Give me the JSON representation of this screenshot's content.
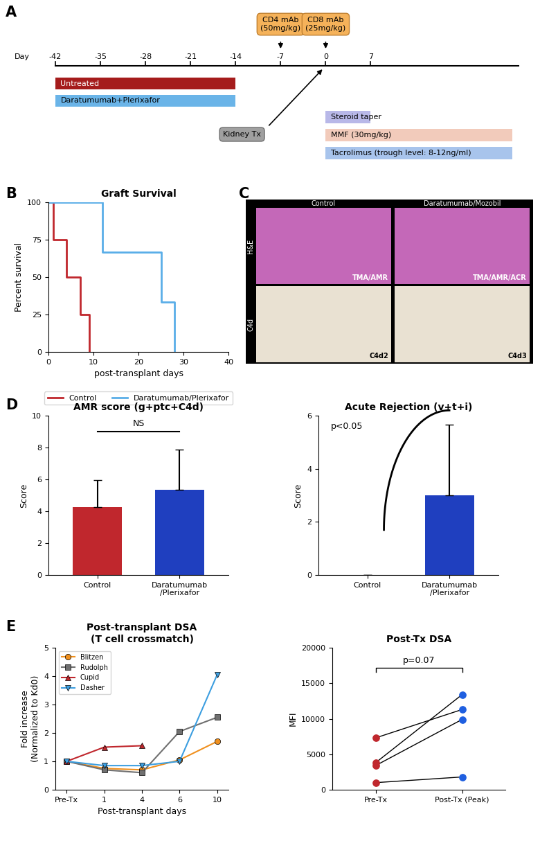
{
  "panel_labels": [
    "A",
    "B",
    "C",
    "D",
    "E"
  ],
  "timeline": {
    "axis_label": "Day",
    "ticks": [
      -42,
      -35,
      -28,
      -21,
      -14,
      -7,
      0,
      7
    ],
    "injections": [
      {
        "label": "CD4 mAb\n(50mg/kg)",
        "day": -7,
        "color": "#f5b25a"
      },
      {
        "label": "CD8 mAb\n(25mg/kg)",
        "day": 0,
        "color": "#f5b25a"
      }
    ],
    "pre_treatments": [
      {
        "label": "Untreated",
        "start": -42,
        "end": -14,
        "color": "#a51c1c"
      },
      {
        "label": "Daratumumab+Plerixafor",
        "start": -42,
        "end": -14,
        "color": "#6ab4e8"
      }
    ],
    "event": {
      "label": "Kidney Tx",
      "day": 0,
      "color": "#a0a0a0"
    },
    "post_treatments": [
      {
        "label": "Steroid taper",
        "start": 0,
        "end": 7,
        "color": "#b8b8e8"
      },
      {
        "label": "MMF (30mg/kg)",
        "start": 0,
        "end": 29,
        "color": "#f2cbbb"
      },
      {
        "label": "Tacrolimus (trough level: 8-12ng/ml)",
        "start": 0,
        "end": 29,
        "color": "#a8c4ec"
      }
    ]
  },
  "histology": {
    "columns": [
      "Control",
      "Daratumumab/Mozobil"
    ],
    "rows": [
      "H&E",
      "C4d"
    ],
    "cell_labels": [
      [
        "TMA/AMR",
        "TMA/AMR/ACR"
      ],
      [
        "C4d2",
        "C4d3"
      ]
    ]
  },
  "chart_data": [
    {
      "type": "line",
      "title": "Graft Survival",
      "x_label": "post-transplant days",
      "y_label": "Percent survival",
      "xlim": [
        0,
        40
      ],
      "xticks": [
        0,
        10,
        20,
        30,
        40
      ],
      "ylim": [
        0,
        100
      ],
      "yticks": [
        0,
        25,
        50,
        75,
        100
      ],
      "legend": "upper center",
      "series": [
        {
          "name": "Control",
          "color": "#c0272d",
          "line_style": "steps",
          "x": [
            0,
            1,
            4,
            7,
            9
          ],
          "values": [
            100,
            75,
            50,
            25,
            0
          ]
        },
        {
          "name": "Daratumumab/Plerixafor",
          "color": "#5aaee8",
          "line_style": "steps",
          "x": [
            0,
            12,
            25,
            28
          ],
          "values": [
            100,
            66.7,
            33.3,
            0
          ]
        }
      ]
    },
    {
      "type": "bar",
      "title": "AMR score (g+ptc+C4d)",
      "y_label": "Score",
      "categories": [
        "Control",
        "Daratumumab\n/Plerixafor"
      ],
      "values": [
        4.25,
        5.35
      ],
      "errors": [
        1.7,
        2.5
      ],
      "colors": [
        "#c0272d",
        "#1f3fbf"
      ],
      "ylim": [
        0,
        10
      ],
      "yticks": [
        0,
        2,
        4,
        6,
        8,
        10
      ],
      "annotation": "NS"
    },
    {
      "type": "bar",
      "title": "Acute Rejection (v+t+i)",
      "y_label": "Score",
      "categories": [
        "Control",
        "Daratumumab\n/Plerixafor"
      ],
      "values": [
        0,
        3.0
      ],
      "errors": [
        0,
        2.65
      ],
      "colors": [
        "#c0272d",
        "#1f3fbf"
      ],
      "ylim": [
        0,
        6
      ],
      "yticks": [
        0,
        2,
        4,
        6
      ],
      "annotation": "p<0.05"
    },
    {
      "type": "line",
      "title": "Post-transplant DSA\n(T cell crossmatch)",
      "x_label": "Post-transplant days",
      "y_label": "Fold increase\n(Normalized to Kd0)",
      "categories": [
        "Pre-Tx",
        "1",
        "4",
        "6",
        "10"
      ],
      "ylim": [
        0,
        5
      ],
      "yticks": [
        0,
        1,
        2,
        3,
        4,
        5
      ],
      "legend": "upper left",
      "series": [
        {
          "name": "Blitzen",
          "color": "#f0901e",
          "marker": "circle",
          "values": [
            1,
            0.75,
            0.7,
            1.05,
            1.7
          ]
        },
        {
          "name": "Rudolph",
          "color": "#707070",
          "marker": "square",
          "values": [
            1,
            0.7,
            0.6,
            2.05,
            2.55
          ]
        },
        {
          "name": "Cupid",
          "color": "#c0272d",
          "marker": "triangle_up",
          "values": [
            1,
            1.5,
            1.55,
            null,
            null
          ]
        },
        {
          "name": "Dasher",
          "color": "#3c9ee0",
          "marker": "triangle_down",
          "values": [
            1,
            0.85,
            0.85,
            1.0,
            4.05
          ]
        }
      ]
    },
    {
      "type": "scatter",
      "title": "Post-Tx DSA",
      "y_label": "MFI",
      "categories": [
        "Pre-Tx",
        "Post-Tx (Peak)"
      ],
      "colors": [
        "#c0272d",
        "#1f5fe0"
      ],
      "pairs": [
        [
          7300,
          11300
        ],
        [
          3800,
          13400
        ],
        [
          3400,
          9900
        ],
        [
          1000,
          1800
        ]
      ],
      "ylim": [
        0,
        20000
      ],
      "yticks": [
        0,
        5000,
        10000,
        15000,
        20000
      ],
      "annotation": "p=0.07"
    }
  ]
}
